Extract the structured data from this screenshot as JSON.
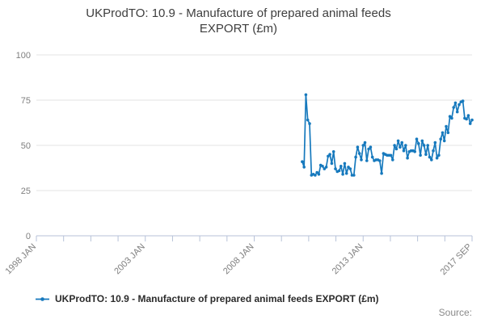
{
  "chart_data": {
    "type": "line",
    "title": "UKProdTO: 10.9 - Manufacture of prepared animal feeds EXPORT (£m)",
    "title_lines": [
      "UKProdTO: 10.9 - Manufacture of prepared animal feeds",
      "EXPORT (£m)"
    ],
    "source_label": "Source:",
    "grid": true,
    "legend_position": "bottom",
    "legend": [
      {
        "label": "UKProdTO: 10.9 - Manufacture of prepared animal feeds EXPORT (£m)",
        "color": "#1679bd"
      }
    ],
    "x_axis": {
      "type": "time-monthly",
      "range_start": "1998 JAN",
      "range_end": "2017 SEP",
      "total_months": 236,
      "tick_count": 17,
      "labeled_ticks": [
        {
          "index": 0,
          "label": "1998 JAN"
        },
        {
          "index": 4,
          "label": "2003 JAN"
        },
        {
          "index": 8,
          "label": "2008 JAN"
        },
        {
          "index": 12,
          "label": "2013 JAN"
        },
        {
          "index": 16,
          "label": "2017 SEP"
        }
      ]
    },
    "y_axis": {
      "min": 0,
      "max": 100,
      "ticks": [
        0,
        25,
        50,
        75,
        100
      ]
    },
    "series": [
      {
        "name": "UKProdTO: 10.9 - Manufacture of prepared animal feeds EXPORT (£m)",
        "color": "#1679bd",
        "frequency": "monthly",
        "start": "2010 JAN",
        "start_month_offset": 144,
        "values": [
          41,
          38,
          78,
          64,
          62,
          33.5,
          34,
          33.5,
          35,
          34,
          39,
          38.5,
          37,
          38,
          44,
          45,
          40,
          46.5,
          37,
          35.5,
          36,
          38.5,
          34,
          40,
          34.5,
          38,
          37,
          33.5,
          33.5,
          43.5,
          49,
          45.5,
          42,
          50,
          51.5,
          41.5,
          48,
          49,
          43.5,
          41.5,
          42,
          42,
          41.5,
          34.5,
          45.5,
          45,
          44.5,
          44.5,
          44.5,
          42,
          50,
          48,
          52.5,
          49,
          51.5,
          47,
          50,
          43,
          46.5,
          47,
          47,
          46.5,
          53.5,
          51,
          44.5,
          52.5,
          50,
          45,
          50,
          43.5,
          42,
          47,
          51.5,
          43,
          44.5,
          53.5,
          57,
          52.5,
          60.5,
          57,
          66,
          65,
          71,
          73.5,
          68.5,
          72.5,
          74,
          74.5,
          65,
          64.5,
          66.5,
          62,
          64
        ]
      }
    ],
    "colors": {
      "line": "#1679bd",
      "grid": "#e3e3e3",
      "axis": "#b7c2d8",
      "tick_label": "#7f7f7f",
      "title": "#3e3e3e",
      "legend_text": "#2b2b2b",
      "source_text": "#8a8a8a"
    }
  }
}
